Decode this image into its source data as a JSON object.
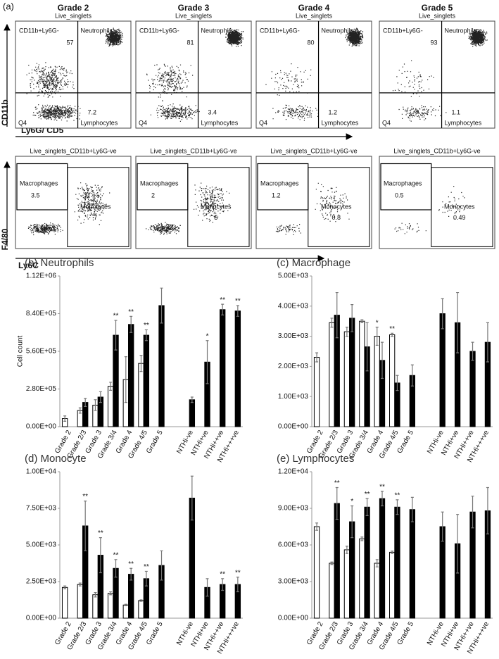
{
  "panel_a": {
    "label": "(a)",
    "y_axis_top": "CD11b",
    "x_axis_top": "Ly6G/ CD5",
    "y_axis_bottom": "F4/80",
    "x_axis_bottom": "Ly6C",
    "top_plots": [
      {
        "grade": "Grade 2",
        "parent": "Live_singlets",
        "gate_upper_left": "CD11b+Ly6G-",
        "gate_upper_right": "Neutrophils",
        "neutrophils": 57,
        "gate_lower_left": "Q4",
        "gate_lower_right": "Lymphocytes",
        "lymphocytes": 7.2
      },
      {
        "grade": "Grade 3",
        "parent": "Live_singlets",
        "gate_upper_left": "CD11b+Ly6G-",
        "gate_upper_right": "Neutrophils",
        "neutrophils": 81,
        "gate_lower_left": "Q4",
        "gate_lower_right": "Lymphocytes",
        "lymphocytes": 3.4
      },
      {
        "grade": "Grade 4",
        "parent": "Live_singlets",
        "gate_upper_left": "CD11b+Ly6G-",
        "gate_upper_right": "Neutrophils",
        "neutrophils": 80,
        "gate_lower_left": "Q4",
        "gate_lower_right": "Lymphocytes",
        "lymphocytes": 1.2
      },
      {
        "grade": "Grade 5",
        "parent": "Live_singlets",
        "gate_upper_left": "CD11b+Ly6G-",
        "gate_upper_right": "Neutrophils",
        "neutrophils": 93,
        "gate_lower_left": "Q4",
        "gate_lower_right": "Lymphocytes",
        "lymphocytes": 1.1
      }
    ],
    "bottom_plots": [
      {
        "parent": "Live_singlets_CD11b+Ly6G-ve",
        "gate_left": "Macrophages",
        "macrophages": 3.5,
        "gate_right": "Monocytes",
        "monocytes": 7
      },
      {
        "parent": "Live_singlets_CD11b+Ly6G-ve",
        "gate_left": "Macrophages",
        "macrophages": 2,
        "gate_right": "Monocytes",
        "monocytes": 5
      },
      {
        "parent": "Live_singlets_CD11b+Ly6G-ve",
        "gate_left": "Macrophages",
        "macrophages": 1.2,
        "gate_right": "Monocytes",
        "monocytes": 0.8
      },
      {
        "parent": "Live_singlets_CD11b+Ly6G-ve",
        "gate_left": "Macrophages",
        "macrophages": 0.5,
        "gate_right": "Monocytes",
        "monocytes": 0.49
      }
    ]
  },
  "chart_data": [
    {
      "type": "bar",
      "title": "(b) Neutrophils",
      "ylabel": "Cell count",
      "categories": [
        "Grade 2",
        "Grade 2/3",
        "Grade 3",
        "Grade 3/4",
        "Grade 4",
        "Grade 4/5",
        "Grade 5",
        null,
        "NTHi-ve",
        "NTHi+ve",
        "NTHi++ve",
        "NTHi+++ve"
      ],
      "ylim": [
        0,
        1120000
      ],
      "yticks": [
        {
          "value": 0,
          "label": "0.00E+00"
        },
        {
          "value": 280000,
          "label": "2.80E+05"
        },
        {
          "value": 560000,
          "label": "5.60E+05"
        },
        {
          "value": 840000,
          "label": "8.40E+05"
        },
        {
          "value": 1120000,
          "label": "1.12E+06"
        }
      ],
      "series": [
        {
          "color": "#ffffff",
          "values": [
            60000,
            120000,
            160000,
            300000,
            350000,
            470000,
            null,
            null,
            null,
            null,
            null,
            null
          ],
          "errors": [
            20000,
            20000,
            40000,
            30000,
            170000,
            60000,
            null,
            null,
            null,
            null,
            null,
            null
          ],
          "annotations": [
            null,
            null,
            null,
            null,
            null,
            null,
            null,
            null,
            null,
            null,
            null,
            null
          ]
        },
        {
          "color": "#000000",
          "values": [
            null,
            180000,
            220000,
            680000,
            760000,
            680000,
            900000,
            null,
            200000,
            480000,
            870000,
            860000
          ],
          "errors": [
            null,
            30000,
            40000,
            110000,
            60000,
            40000,
            130000,
            null,
            20000,
            160000,
            40000,
            40000
          ],
          "annotations": [
            null,
            null,
            null,
            "**",
            "**",
            "**",
            null,
            null,
            null,
            "*",
            "**",
            "**"
          ]
        }
      ]
    },
    {
      "type": "bar",
      "title": "(c) Macrophage",
      "categories": [
        "Grade 2",
        "Grade 2/3",
        "Grade 3",
        "Grade 3/4",
        "Grade 4",
        "Grade 4/5",
        "Grade 5",
        null,
        "NTHi-ve",
        "NTHi+ve",
        "NTHi++ve",
        "NTHi+++ve"
      ],
      "ylim": [
        0,
        5000
      ],
      "yticks": [
        {
          "value": 0,
          "label": "0.00E+00"
        },
        {
          "value": 1000,
          "label": "1.00E+03"
        },
        {
          "value": 2000,
          "label": "2.00E+03"
        },
        {
          "value": 3000,
          "label": "3.00E+03"
        },
        {
          "value": 4000,
          "label": "4.00E+03"
        },
        {
          "value": 5000,
          "label": "5.00E+03"
        }
      ],
      "series": [
        {
          "color": "#ffffff",
          "values": [
            2300,
            3450,
            3150,
            3500,
            3000,
            3050,
            null,
            null,
            null,
            null,
            null,
            null
          ],
          "errors": [
            150,
            150,
            150,
            50,
            300,
            50,
            null,
            null,
            null,
            null,
            null,
            null
          ],
          "annotations": [
            null,
            null,
            null,
            null,
            "*",
            "**",
            null,
            null,
            null,
            null,
            null,
            null
          ]
        },
        {
          "color": "#000000",
          "values": [
            null,
            3700,
            3600,
            2650,
            2200,
            1450,
            1700,
            null,
            3750,
            3450,
            2500,
            2800
          ],
          "errors": [
            null,
            750,
            450,
            800,
            600,
            250,
            350,
            null,
            500,
            1000,
            300,
            650
          ],
          "annotations": [
            null,
            null,
            null,
            null,
            null,
            null,
            null,
            null,
            null,
            null,
            null,
            null
          ]
        }
      ]
    },
    {
      "type": "bar",
      "title": "(d) Monocyte",
      "categories": [
        "Grade 2",
        "Grade 2/3",
        "Grade 3",
        "Grade 3/4",
        "Grade 4",
        "Grade 4/5",
        "Grade 5",
        null,
        "NTHi-ve",
        "NTHi+ve",
        "NTHi++ve",
        "NTHi+++ve"
      ],
      "ylim": [
        0,
        10000
      ],
      "yticks": [
        {
          "value": 0,
          "label": "0.00E+00"
        },
        {
          "value": 2500,
          "label": "2.50E+03"
        },
        {
          "value": 5000,
          "label": "5.00E+03"
        },
        {
          "value": 7500,
          "label": "7.50E+03"
        },
        {
          "value": 10000,
          "label": "1.00E+04"
        }
      ],
      "series": [
        {
          "color": "#ffffff",
          "values": [
            2100,
            2300,
            1600,
            1700,
            900,
            1200,
            null,
            null,
            null,
            null,
            null,
            null
          ],
          "errors": [
            100,
            100,
            150,
            100,
            50,
            50,
            null,
            null,
            null,
            null,
            null,
            null
          ],
          "annotations": [
            null,
            null,
            null,
            null,
            null,
            null,
            null,
            null,
            null,
            null,
            null,
            null
          ]
        },
        {
          "color": "#000000",
          "values": [
            null,
            6300,
            4300,
            3400,
            3000,
            2700,
            3600,
            null,
            8200,
            2100,
            2300,
            2300
          ],
          "errors": [
            null,
            1700,
            1200,
            600,
            400,
            500,
            1000,
            null,
            1500,
            600,
            400,
            500
          ],
          "annotations": [
            null,
            "**",
            "**",
            "**",
            "**",
            "**",
            null,
            null,
            null,
            null,
            "**",
            "**"
          ]
        }
      ]
    },
    {
      "type": "bar",
      "title": "(e) Lymphocytes",
      "categories": [
        "Grade 2",
        "Grade 2/3",
        "Grade 3",
        "Grade 3/4",
        "Grade 4",
        "Grade 4/5",
        "Grade 5",
        null,
        "NTHi-ve",
        "NTHi+ve",
        "NTHi++ve",
        "NTHi+++ve"
      ],
      "ylim": [
        0,
        12000
      ],
      "yticks": [
        {
          "value": 0,
          "label": "0.00E+00"
        },
        {
          "value": 3000,
          "label": "3.00E+03"
        },
        {
          "value": 6000,
          "label": "6.00E+03"
        },
        {
          "value": 9000,
          "label": "9.00E+03"
        },
        {
          "value": 12000,
          "label": "1.20E+04"
        }
      ],
      "series": [
        {
          "color": "#ffffff",
          "values": [
            7500,
            4500,
            5600,
            6500,
            4500,
            5400,
            null,
            null,
            null,
            null,
            null,
            null
          ],
          "errors": [
            300,
            100,
            300,
            150,
            300,
            100,
            null,
            null,
            null,
            null,
            null,
            null
          ],
          "annotations": [
            null,
            null,
            null,
            null,
            null,
            null,
            null,
            null,
            null,
            null,
            null,
            null
          ]
        },
        {
          "color": "#000000",
          "values": [
            null,
            9400,
            7900,
            9100,
            9800,
            9100,
            8900,
            null,
            7500,
            6100,
            8700,
            8800
          ],
          "errors": [
            null,
            1300,
            1300,
            700,
            600,
            600,
            1000,
            null,
            1200,
            2400,
            1300,
            1900
          ],
          "annotations": [
            null,
            "**",
            "*",
            "**",
            "**",
            "**",
            null,
            null,
            null,
            null,
            null,
            null
          ]
        }
      ]
    }
  ]
}
